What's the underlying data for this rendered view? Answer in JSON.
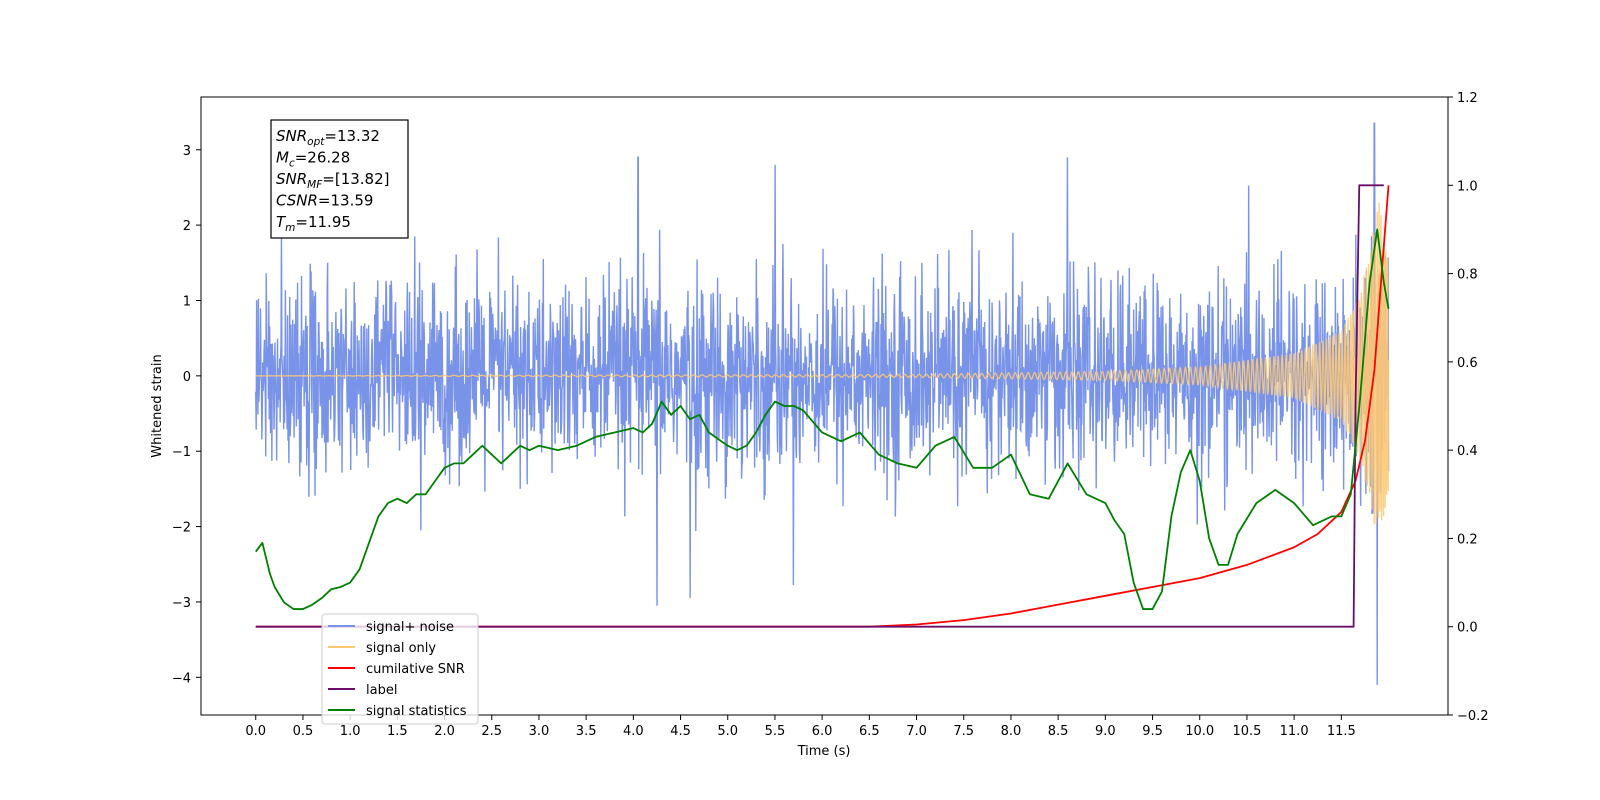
{
  "chart_data": {
    "type": "line",
    "xlabel": "Time (s)",
    "ylabel_left": "Whitened strain",
    "ylabel_right": "",
    "xlim": [
      -0.58,
      12.63
    ],
    "ylim_left": [
      -4.5,
      3.7
    ],
    "ylim_right": [
      -0.2,
      1.2
    ],
    "x_ticks": [
      0.0,
      0.5,
      1.0,
      1.5,
      2.0,
      2.5,
      3.0,
      3.5,
      4.0,
      4.5,
      5.0,
      5.5,
      6.0,
      6.5,
      7.0,
      7.5,
      8.0,
      8.5,
      9.0,
      9.5,
      10.0,
      10.5,
      11.0,
      11.5
    ],
    "x_tick_labels": [
      "0.0",
      "0.5",
      "1.0",
      "1.5",
      "2.0",
      "2.5",
      "3.0",
      "3.5",
      "4.0",
      "4.5",
      "5.0",
      "5.5",
      "6.0",
      "6.5",
      "7.0",
      "7.5",
      "8.0",
      "8.5",
      "9.0",
      "9.5",
      "10.0",
      "10.5",
      "11.0",
      "11.5"
    ],
    "y_left_ticks": [
      3,
      2,
      1,
      0,
      -1,
      -2,
      -3,
      -4
    ],
    "y_left_tick_labels": [
      "3",
      "2",
      "1",
      "0",
      "−1",
      "−2",
      "−3",
      "−4"
    ],
    "y_right_ticks": [
      1.2,
      1.0,
      0.8,
      0.6,
      0.4,
      0.2,
      0.0,
      -0.2
    ],
    "y_right_tick_labels": [
      "1.2",
      "1.0",
      "0.8",
      "0.6",
      "0.4",
      "0.2",
      "0.0",
      "−0.2"
    ],
    "annotation": [
      {
        "sym": "SNR",
        "sub": "opt",
        "value": "=13.32"
      },
      {
        "sym": "M",
        "sub": "c",
        "value": "=26.28"
      },
      {
        "sym": "SNR",
        "sub": "MF",
        "value": "=[13.82]"
      },
      {
        "sym": "CSNR",
        "sub": "",
        "value": "=13.59"
      },
      {
        "sym": "T",
        "sub": "m",
        "value": "=11.95"
      }
    ],
    "legend": {
      "placement": "lower-left",
      "entries": [
        {
          "label": "signal+ noise",
          "color": "#7893e8"
        },
        {
          "label": "signal only",
          "color": "#ffc973"
        },
        {
          "label": "cumilative SNR",
          "color": "#ff0000"
        },
        {
          "label": "label",
          "color": "#6a0d6a"
        },
        {
          "label": "signal statistics",
          "color": "#008000"
        }
      ]
    },
    "series": [
      {
        "name": "signal+ noise",
        "axis": "left",
        "color": "#7893e8",
        "x_range": [
          0.0,
          12.0
        ],
        "typical_amplitude": 1.5,
        "extremes": [
          [
            4.05,
            2.9
          ],
          [
            5.5,
            2.8
          ],
          [
            8.6,
            2.9
          ],
          [
            11.85,
            3.35
          ],
          [
            11.88,
            -4.1
          ],
          [
            4.25,
            -3.05
          ],
          [
            4.6,
            -2.95
          ]
        ]
      },
      {
        "name": "signal only",
        "axis": "left",
        "color": "#ffc973",
        "x_range": [
          0.0,
          12.0
        ],
        "envelope_x": [
          0.0,
          7.0,
          9.0,
          10.0,
          11.0,
          11.5,
          11.7,
          11.9,
          12.0
        ],
        "envelope_y": [
          0.0,
          0.02,
          0.06,
          0.12,
          0.3,
          0.6,
          1.1,
          2.3,
          1.5
        ]
      },
      {
        "name": "cumilative SNR",
        "axis": "right",
        "color": "#ff0000",
        "x": [
          0.0,
          6.5,
          7.0,
          7.5,
          8.0,
          8.5,
          9.0,
          9.5,
          10.0,
          10.5,
          11.0,
          11.25,
          11.5,
          11.65,
          11.75,
          11.85,
          11.92,
          12.0
        ],
        "y": [
          0.0,
          0.0,
          0.005,
          0.015,
          0.03,
          0.05,
          0.07,
          0.09,
          0.11,
          0.14,
          0.18,
          0.21,
          0.26,
          0.33,
          0.42,
          0.58,
          0.78,
          1.0
        ]
      },
      {
        "name": "label",
        "axis": "right",
        "color": "#6a0d6a",
        "x": [
          0.0,
          11.63,
          11.65,
          11.69,
          11.95
        ],
        "y": [
          0.0,
          0.0,
          0.5,
          1.0,
          1.0
        ]
      },
      {
        "name": "signal statistics",
        "axis": "right",
        "color": "#008000",
        "x": [
          0.0,
          0.07,
          0.15,
          0.2,
          0.3,
          0.4,
          0.5,
          0.6,
          0.7,
          0.8,
          0.9,
          1.0,
          1.1,
          1.2,
          1.3,
          1.4,
          1.5,
          1.6,
          1.7,
          1.8,
          1.9,
          2.0,
          2.1,
          2.2,
          2.3,
          2.4,
          2.5,
          2.6,
          2.7,
          2.8,
          2.9,
          3.0,
          3.2,
          3.4,
          3.6,
          3.8,
          4.0,
          4.1,
          4.2,
          4.3,
          4.4,
          4.5,
          4.6,
          4.7,
          4.8,
          5.0,
          5.1,
          5.2,
          5.3,
          5.4,
          5.5,
          5.6,
          5.7,
          5.8,
          6.0,
          6.2,
          6.4,
          6.6,
          6.8,
          7.0,
          7.2,
          7.4,
          7.6,
          7.8,
          8.0,
          8.2,
          8.4,
          8.6,
          8.8,
          9.0,
          9.1,
          9.2,
          9.3,
          9.4,
          9.5,
          9.6,
          9.7,
          9.8,
          9.9,
          10.0,
          10.1,
          10.2,
          10.3,
          10.4,
          10.6,
          10.8,
          11.0,
          11.2,
          11.4,
          11.5,
          11.6,
          11.7,
          11.8,
          11.88,
          11.95,
          12.0
        ],
        "y": [
          0.17,
          0.19,
          0.12,
          0.09,
          0.055,
          0.04,
          0.04,
          0.05,
          0.065,
          0.085,
          0.09,
          0.1,
          0.13,
          0.19,
          0.25,
          0.28,
          0.29,
          0.28,
          0.3,
          0.3,
          0.33,
          0.36,
          0.37,
          0.37,
          0.39,
          0.41,
          0.39,
          0.37,
          0.39,
          0.41,
          0.4,
          0.41,
          0.4,
          0.41,
          0.43,
          0.44,
          0.45,
          0.44,
          0.46,
          0.51,
          0.48,
          0.5,
          0.47,
          0.48,
          0.44,
          0.41,
          0.4,
          0.41,
          0.44,
          0.48,
          0.51,
          0.5,
          0.5,
          0.49,
          0.44,
          0.42,
          0.44,
          0.39,
          0.37,
          0.36,
          0.41,
          0.43,
          0.36,
          0.36,
          0.39,
          0.3,
          0.29,
          0.37,
          0.3,
          0.28,
          0.24,
          0.21,
          0.1,
          0.04,
          0.04,
          0.08,
          0.25,
          0.35,
          0.4,
          0.33,
          0.2,
          0.14,
          0.14,
          0.21,
          0.28,
          0.31,
          0.28,
          0.23,
          0.25,
          0.25,
          0.3,
          0.52,
          0.78,
          0.9,
          0.78,
          0.72
        ]
      }
    ]
  }
}
